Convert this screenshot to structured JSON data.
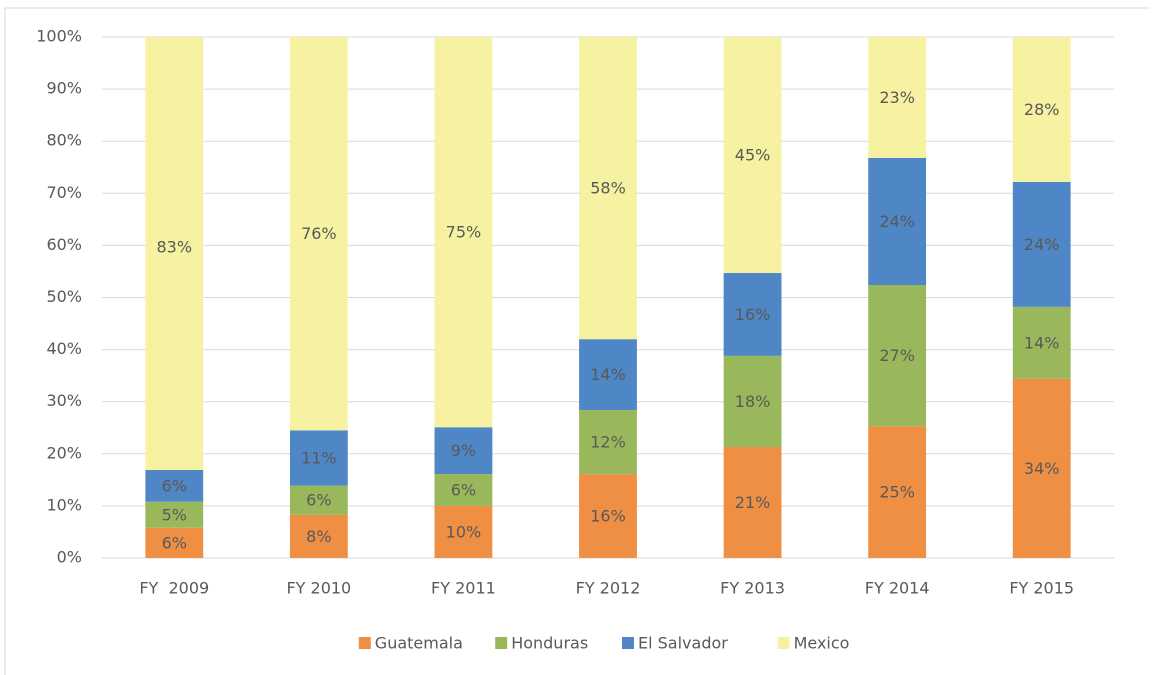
{
  "chart_data": {
    "type": "stacked_bar",
    "categories": [
      "FY  2009",
      "FY 2010",
      "FY 2011",
      "FY 2012",
      "FY 2013",
      "FY 2014",
      "FY 2015"
    ],
    "series": [
      {
        "name": "Guatemala",
        "color": "#ef8f44",
        "values": [
          5.8,
          8.3,
          10.0,
          16.1,
          21.3,
          25.3,
          34.4
        ],
        "value_labels": [
          "6%",
          "8%",
          "10%",
          "16%",
          "21%",
          "25%",
          "34%"
        ]
      },
      {
        "name": "Honduras",
        "color": "#99b85c",
        "values": [
          5.0,
          5.6,
          6.1,
          12.3,
          17.5,
          27.1,
          13.8
        ],
        "value_labels": [
          "5%",
          "6%",
          "6%",
          "12%",
          "18%",
          "27%",
          "14%"
        ]
      },
      {
        "name": "El Salvador",
        "color": "#4f86c6",
        "values": [
          6.1,
          10.6,
          9.0,
          13.6,
          15.9,
          24.4,
          24.0
        ],
        "value_labels": [
          "6%",
          "11%",
          "9%",
          "14%",
          "16%",
          "24%",
          "24%"
        ]
      },
      {
        "name": "Mexico",
        "color": "#f6f2a2",
        "values": [
          83.1,
          75.5,
          74.9,
          58.0,
          45.3,
          23.2,
          27.8
        ],
        "value_labels": [
          "83%",
          "76%",
          "75%",
          "58%",
          "45%",
          "23%",
          "28%"
        ]
      }
    ],
    "ylim": [
      0,
      100
    ],
    "yticks": [
      {
        "value": 0,
        "label": "0%"
      },
      {
        "value": 10,
        "label": "10%"
      },
      {
        "value": 20,
        "label": "20%"
      },
      {
        "value": 30,
        "label": "30%"
      },
      {
        "value": 40,
        "label": "40%"
      },
      {
        "value": 50,
        "label": "50%"
      },
      {
        "value": 60,
        "label": "60%"
      },
      {
        "value": 70,
        "label": "70%"
      },
      {
        "value": 80,
        "label": "80%"
      },
      {
        "value": 90,
        "label": "90%"
      },
      {
        "value": 100,
        "label": "100%"
      }
    ],
    "grid": true,
    "legend": "bottom"
  }
}
